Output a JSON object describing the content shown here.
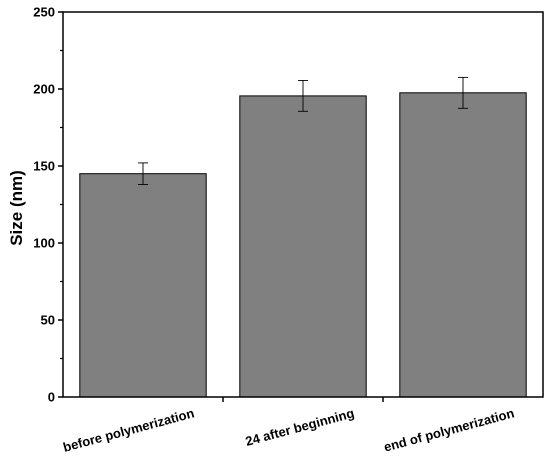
{
  "chart_data": {
    "type": "bar",
    "title": "",
    "xlabel": "",
    "ylabel": "Size (nm)",
    "categories": [
      "before polymerization",
      "24 after beginning",
      "end of polymerization"
    ],
    "values": [
      145,
      195.5,
      197.5
    ],
    "errors": [
      7,
      10,
      10
    ],
    "ylim": [
      0,
      250
    ],
    "yticks": [
      0,
      50,
      100,
      150,
      200,
      250
    ],
    "grid": false,
    "bar_color": "#808080",
    "bar_edge_color": "#000000"
  }
}
